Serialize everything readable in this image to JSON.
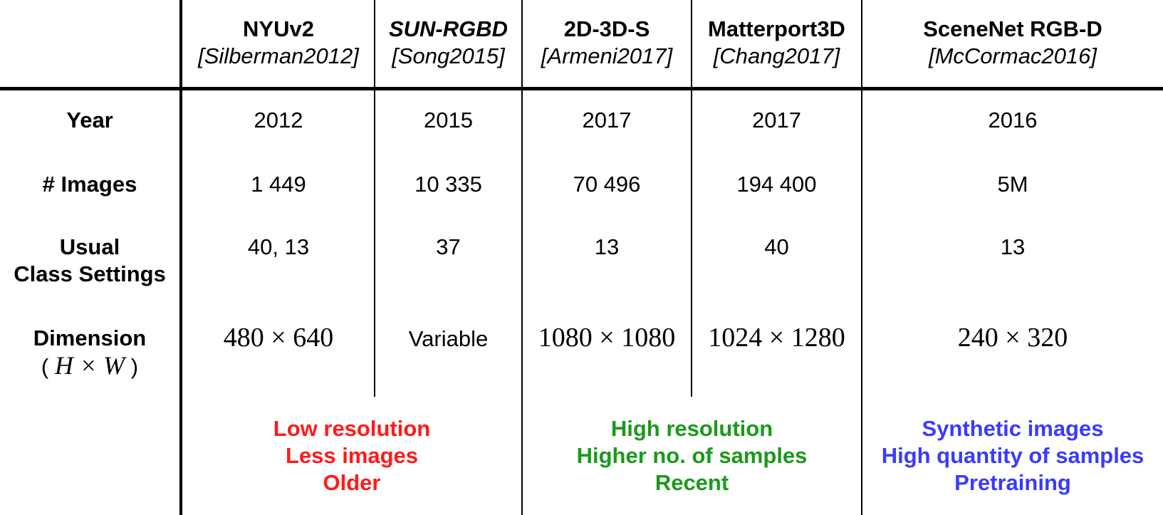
{
  "colors": {
    "red": "#ff1a1a",
    "green": "#1a9a1a",
    "blue": "#3a3aff"
  },
  "columns": [
    {
      "name": "NYUv2",
      "cite": "[Silberman2012]",
      "italic_name": false
    },
    {
      "name": "SUN-RGBD",
      "cite": "[Song2015]",
      "italic_name": true
    },
    {
      "name": "2D-3D-S",
      "cite": "[Armeni2017]",
      "italic_name": false
    },
    {
      "name": "Matterport3D",
      "cite": "[Chang2017]",
      "italic_name": false
    },
    {
      "name": "SceneNet RGB-D",
      "cite": "[McCormac2016]",
      "italic_name": false
    }
  ],
  "rows": {
    "year": {
      "label": "Year",
      "values": [
        "2012",
        "2015",
        "2017",
        "2017",
        "2016"
      ]
    },
    "images": {
      "label": "# Images",
      "values": [
        "1 449",
        "10 335",
        "70 496",
        "194 400",
        "5M"
      ]
    },
    "classes": {
      "label_line1": "Usual",
      "label_line2": "Class Settings",
      "values": [
        "40, 13",
        "37",
        "13",
        "40",
        "13"
      ]
    },
    "dimension": {
      "label_line1": "Dimension",
      "label_line2_open": "(",
      "label_line2_math": "H × W",
      "label_line2_close": ")",
      "values": [
        "480 × 640",
        "Variable",
        "1080 × 1080",
        "1024 × 1280",
        "240 × 320"
      ]
    }
  },
  "notes": {
    "group1": [
      "Low resolution",
      "Less images",
      "Older"
    ],
    "group2": [
      "High resolution",
      "Higher no. of samples",
      "Recent"
    ],
    "group3": [
      "Synthetic images",
      "High quantity of samples",
      "Pretraining"
    ]
  }
}
